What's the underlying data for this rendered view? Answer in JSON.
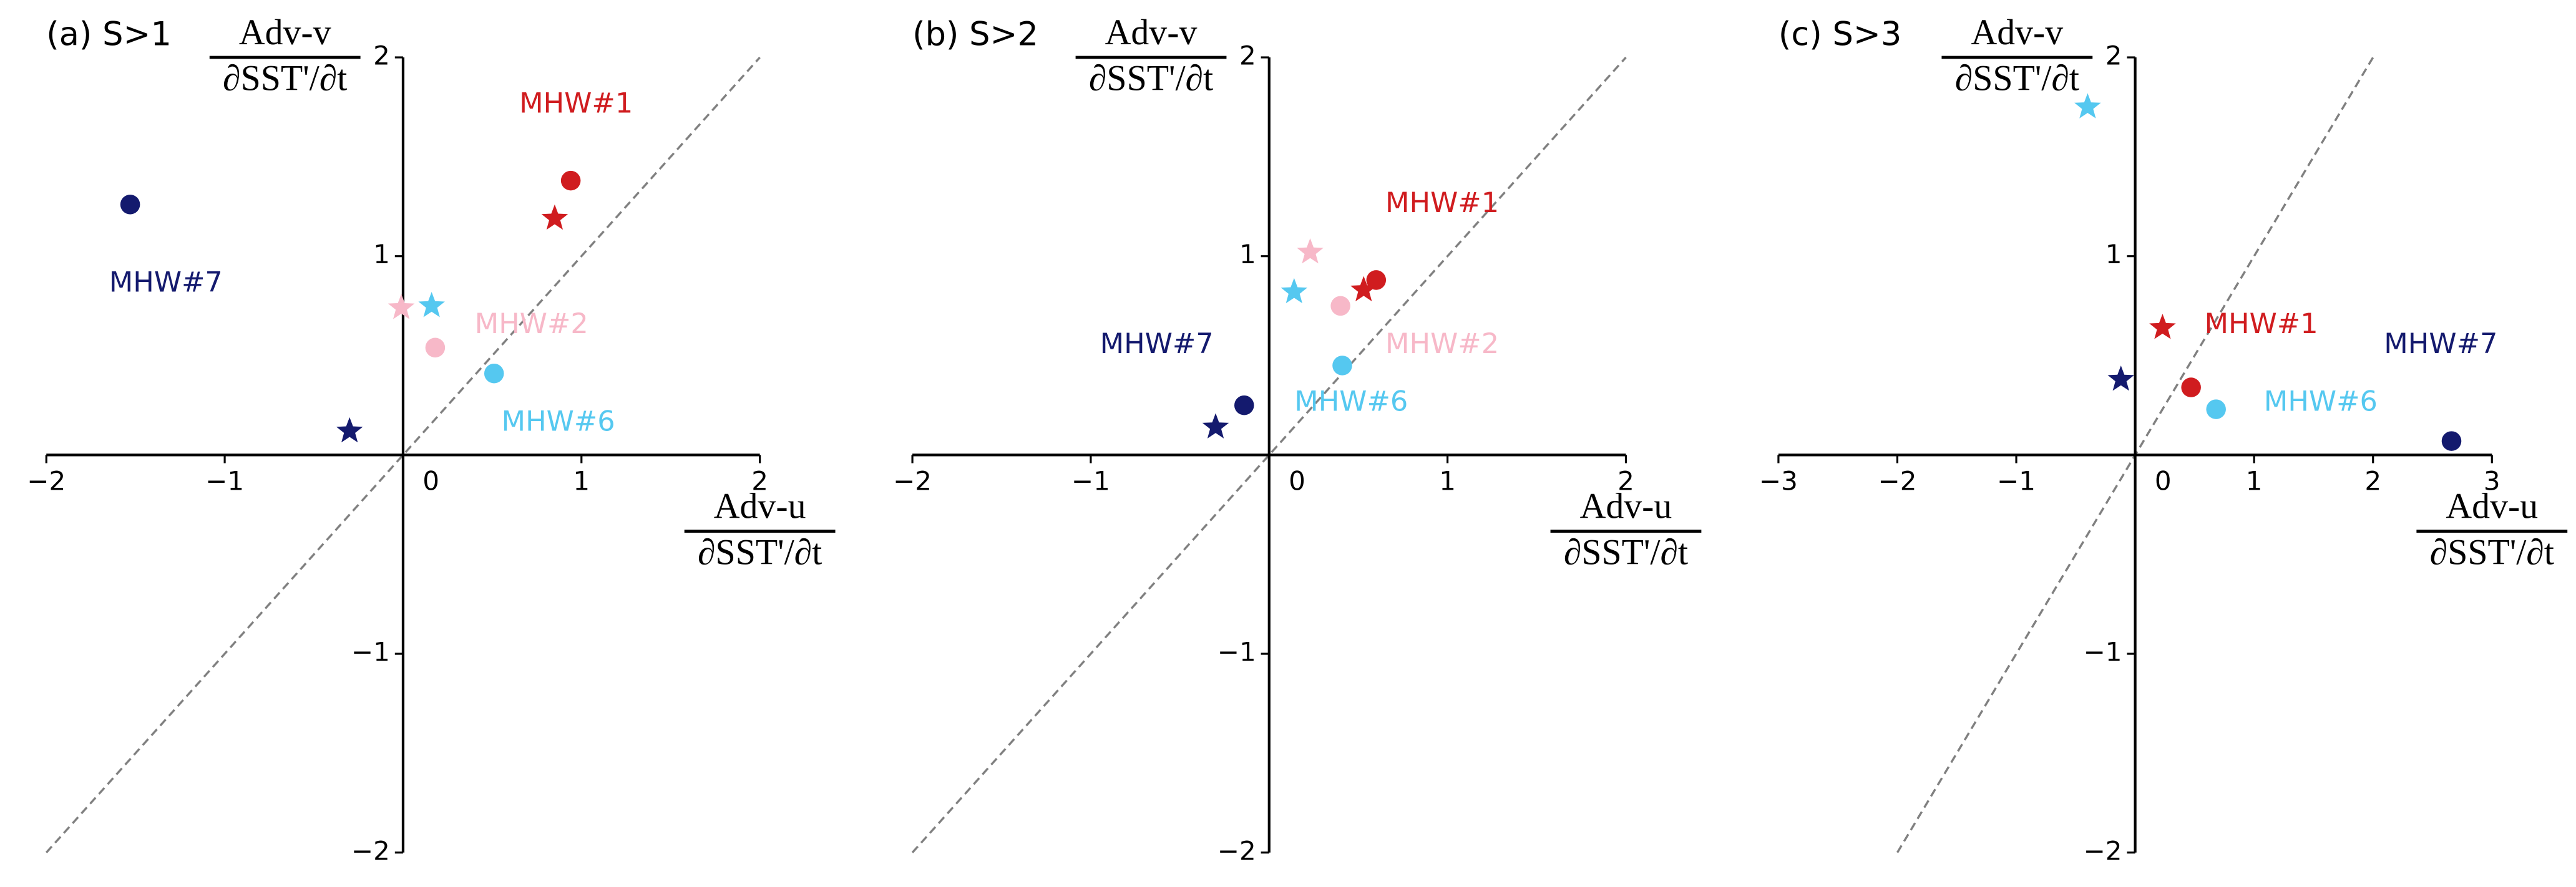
{
  "chart_data": [
    {
      "type": "scatter",
      "title": "(a) S>1",
      "x_label": {
        "numerator": "Adv-u",
        "denominator": "∂SST'/∂t"
      },
      "y_label": {
        "numerator": "Adv-v",
        "denominator": "∂SST'/∂t"
      },
      "xlim": [
        -2,
        2
      ],
      "ylim": [
        -2,
        2
      ],
      "xticks": [
        {
          "value": -2,
          "label": "−2"
        },
        {
          "value": -1,
          "label": "−1"
        },
        0,
        1,
        2
      ],
      "yticks": [
        {
          "value": -2,
          "label": "−2"
        },
        {
          "value": -1,
          "label": "−1"
        },
        1,
        2
      ],
      "reference_line": {
        "x": [
          -2,
          2
        ],
        "y": [
          -2,
          2
        ],
        "color": "#808080"
      },
      "points": [
        {
          "x": -1.53,
          "y": 1.26,
          "marker": "circle",
          "color": "#141a6e"
        },
        {
          "x": 0.94,
          "y": 1.38,
          "marker": "circle",
          "color": "#d01c1f"
        },
        {
          "x": 0.85,
          "y": 1.19,
          "marker": "star",
          "color": "#d01c1f"
        },
        {
          "x": 0.16,
          "y": 0.75,
          "marker": "star",
          "color": "#55c8f0"
        },
        {
          "x": -0.01,
          "y": 0.74,
          "marker": "star",
          "color": "#f7b8c8"
        },
        {
          "x": 0.18,
          "y": 0.54,
          "marker": "circle",
          "color": "#f7b8c8"
        },
        {
          "x": 0.51,
          "y": 0.41,
          "marker": "circle",
          "color": "#55c8f0"
        },
        {
          "x": -0.3,
          "y": 0.12,
          "marker": "star",
          "color": "#141a6e"
        }
      ],
      "annotations": [
        {
          "text": "MHW#1",
          "x": 0.97,
          "y": 1.76,
          "color": "#d01c1f"
        },
        {
          "text": "MHW#7",
          "x": -1.33,
          "y": 0.86,
          "color": "#141a6e"
        },
        {
          "text": "MHW#2",
          "x": 0.72,
          "y": 0.65,
          "color": "#f7b8c8"
        },
        {
          "text": "MHW#6",
          "x": 0.87,
          "y": 0.16,
          "color": "#55c8f0"
        }
      ]
    },
    {
      "type": "scatter",
      "title": "(b) S>2",
      "x_label": {
        "numerator": "Adv-u",
        "denominator": "∂SST'/∂t"
      },
      "y_label": {
        "numerator": "Adv-v",
        "denominator": "∂SST'/∂t"
      },
      "xlim": [
        -2,
        2
      ],
      "ylim": [
        -2,
        2
      ],
      "xticks": [
        {
          "value": -2,
          "label": "−2"
        },
        {
          "value": -1,
          "label": "−1"
        },
        0,
        1,
        2
      ],
      "yticks": [
        {
          "value": -2,
          "label": "−2"
        },
        {
          "value": -1,
          "label": "−1"
        },
        1,
        2
      ],
      "reference_line": {
        "x": [
          -2,
          2
        ],
        "y": [
          -2,
          2
        ],
        "color": "#808080"
      },
      "points": [
        {
          "x": 0.6,
          "y": 0.88,
          "marker": "circle",
          "color": "#d01c1f"
        },
        {
          "x": 0.53,
          "y": 0.83,
          "marker": "star",
          "color": "#d01c1f"
        },
        {
          "x": 0.23,
          "y": 1.02,
          "marker": "star",
          "color": "#f7b8c8"
        },
        {
          "x": 0.14,
          "y": 0.82,
          "marker": "star",
          "color": "#55c8f0"
        },
        {
          "x": 0.4,
          "y": 0.75,
          "marker": "circle",
          "color": "#f7b8c8"
        },
        {
          "x": 0.41,
          "y": 0.45,
          "marker": "circle",
          "color": "#55c8f0"
        },
        {
          "x": -0.14,
          "y": 0.25,
          "marker": "circle",
          "color": "#141a6e"
        },
        {
          "x": -0.3,
          "y": 0.14,
          "marker": "star",
          "color": "#141a6e"
        }
      ],
      "annotations": [
        {
          "text": "MHW#1",
          "x": 0.97,
          "y": 1.26,
          "color": "#d01c1f"
        },
        {
          "text": "MHW#7",
          "x": -0.63,
          "y": 0.55,
          "color": "#141a6e"
        },
        {
          "text": "MHW#2",
          "x": 0.97,
          "y": 0.55,
          "color": "#f7b8c8"
        },
        {
          "text": "MHW#6",
          "x": 0.46,
          "y": 0.26,
          "color": "#55c8f0"
        }
      ]
    },
    {
      "type": "scatter",
      "title": "(c) S>3",
      "x_label": {
        "numerator": "Adv-u",
        "denominator": "∂SST'/∂t"
      },
      "y_label": {
        "numerator": "Adv-v",
        "denominator": "∂SST'/∂t"
      },
      "xlim": [
        -3,
        3
      ],
      "ylim": [
        -2,
        2
      ],
      "xticks": [
        {
          "value": -3,
          "label": "−3"
        },
        {
          "value": -2,
          "label": "−2"
        },
        {
          "value": -1,
          "label": "−1"
        },
        0,
        1,
        2,
        3
      ],
      "yticks": [
        {
          "value": -2,
          "label": "−2"
        },
        {
          "value": -1,
          "label": "−1"
        },
        1,
        2
      ],
      "reference_line": {
        "x": [
          -2,
          2
        ],
        "y": [
          -2,
          2
        ],
        "color": "#808080"
      },
      "points": [
        {
          "x": -0.4,
          "y": 1.75,
          "marker": "star",
          "color": "#55c8f0"
        },
        {
          "x": 0.23,
          "y": 0.64,
          "marker": "star",
          "color": "#d01c1f"
        },
        {
          "x": -0.12,
          "y": 0.38,
          "marker": "star",
          "color": "#141a6e"
        },
        {
          "x": 0.47,
          "y": 0.34,
          "marker": "circle",
          "color": "#d01c1f"
        },
        {
          "x": 0.68,
          "y": 0.23,
          "marker": "circle",
          "color": "#55c8f0"
        },
        {
          "x": 2.66,
          "y": 0.07,
          "marker": "circle",
          "color": "#141a6e"
        }
      ],
      "annotations": [
        {
          "text": "MHW#1",
          "x": 1.06,
          "y": 0.65,
          "color": "#d01c1f"
        },
        {
          "text": "MHW#7",
          "x": 2.57,
          "y": 0.55,
          "color": "#141a6e"
        },
        {
          "text": "MHW#6",
          "x": 1.56,
          "y": 0.26,
          "color": "#55c8f0"
        }
      ]
    }
  ]
}
